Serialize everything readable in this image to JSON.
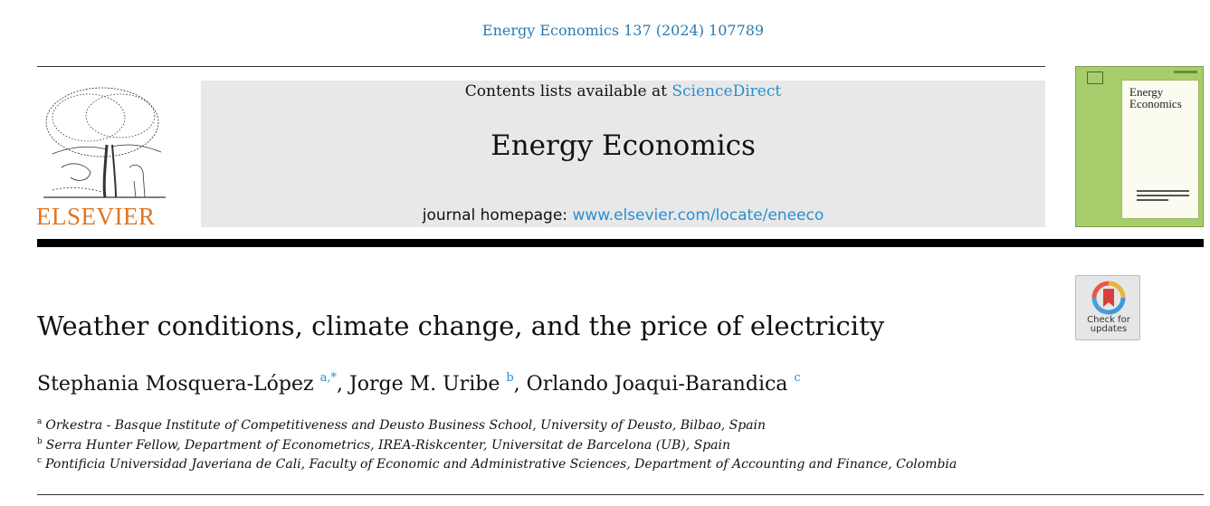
{
  "header": {
    "citation": "Energy Economics 137 (2024) 107789",
    "contents_prefix": "Contents lists available at ",
    "contents_link": "ScienceDirect",
    "journal_name": "Energy Economics",
    "homepage_prefix": "journal homepage: ",
    "homepage_link": "www.elsevier.com/locate/eneeco",
    "publisher": "ELSEVIER",
    "cover_title_line1": "Energy",
    "cover_title_line2": "Economics"
  },
  "badge": {
    "line1": "Check for",
    "line2": "updates"
  },
  "article": {
    "title": "Weather conditions, climate change, and the price of electricity",
    "authors": [
      {
        "name": "Stephania Mosquera-López",
        "sup": "a,*",
        "sep": ", "
      },
      {
        "name": "Jorge M. Uribe",
        "sup": "b",
        "sep": ", "
      },
      {
        "name": "Orlando Joaqui-Barandica",
        "sup": "c",
        "sep": ""
      }
    ],
    "affiliations": [
      {
        "mark": "a",
        "text": "Orkestra - Basque Institute of Competitiveness and Deusto Business School, University of Deusto, Bilbao, Spain"
      },
      {
        "mark": "b",
        "text": "Serra Hunter Fellow, Department of Econometrics, IREA-Riskcenter, Universitat de Barcelona (UB), Spain"
      },
      {
        "mark": "c",
        "text": "Pontificia Universidad Javeriana de Cali, Faculty of Economic and Administrative Sciences, Department of Accounting and Finance, Colombia"
      }
    ]
  },
  "colors": {
    "link": "#2a8fd0",
    "publisher_orange": "#e2741f",
    "cover_green": "#a8cd6c",
    "banner_gray": "#e8e8e8"
  },
  "icons": [
    "elsevier-tree-icon",
    "crossmark-icon"
  ]
}
